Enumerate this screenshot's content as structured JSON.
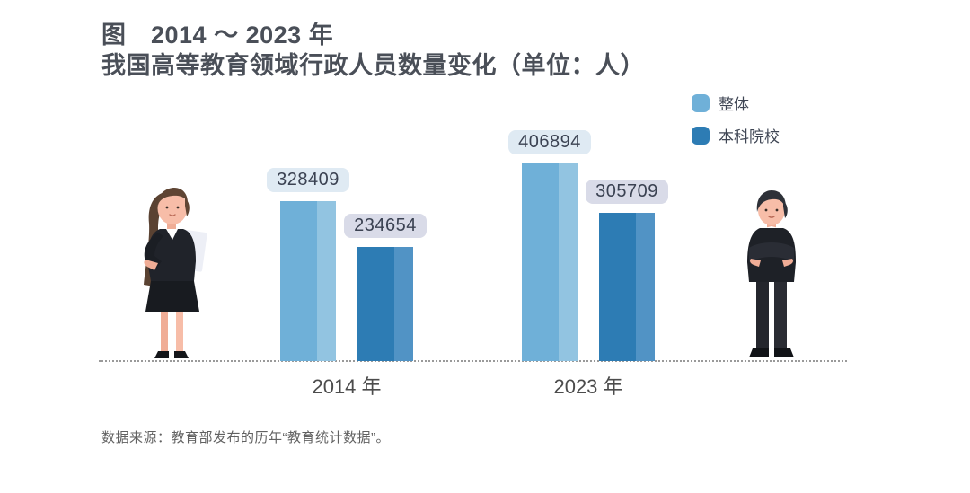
{
  "title": {
    "line1": "图　2014 ～ 2023 年",
    "line2": "我国高等教育领域行政人员数量变化（单位：人）"
  },
  "chart_data": {
    "type": "bar",
    "title": "2014 ～ 2023 年我国高等教育领域行政人员数量变化（单位：人）",
    "unit": "人",
    "categories": [
      "2014 年",
      "2023 年"
    ],
    "series": [
      {
        "name": "整体",
        "values": [
          328409,
          406894
        ],
        "color": "#6fb0d8",
        "highlight_color": "#92c4e1",
        "label_bg": "#dfeaf3"
      },
      {
        "name": "本科院校",
        "values": [
          234654,
          305709
        ],
        "color": "#2d7cb4",
        "highlight_color": "#5193c5",
        "label_bg": "#d9dbe8"
      }
    ],
    "ylim": [
      0,
      406894
    ],
    "grid": false,
    "legend_position": "top-right",
    "baseline_style": "dotted",
    "value_label_color": "#3b4252"
  },
  "figures": {
    "left": "female-office-worker-illustration",
    "right": "male-office-worker-illustration"
  },
  "source": "数据来源：教育部发布的历年“教育统计数据”。"
}
